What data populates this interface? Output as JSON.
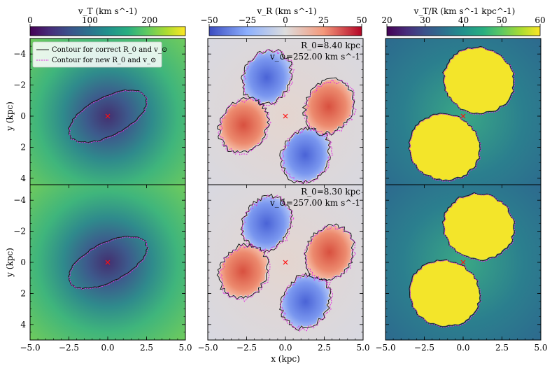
{
  "chart_data": [
    {
      "type": "heatmap",
      "panel": "top-left",
      "colorbar": {
        "label": "v_T (km s^-1)",
        "ticks": [
          "0",
          "100",
          "200"
        ],
        "range": [
          0,
          260
        ],
        "cmap": "viridis"
      },
      "xlim": [
        -5,
        5
      ],
      "ylim": [
        5,
        -5
      ],
      "ylabel": "y (kpc)",
      "ellipse": {
        "center": [
          0,
          0
        ],
        "a": 2.75,
        "b": 1.25,
        "angle_deg": 27
      },
      "marker": [
        0,
        0
      ],
      "legend": {
        "placement": "top-left",
        "entries": [
          "Contour for correct R_0 and v_⊙",
          "Contour for new R_0 and v_⊙"
        ]
      }
    },
    {
      "type": "heatmap",
      "panel": "top-middle",
      "colorbar": {
        "label": "v_R (km s^-1)",
        "ticks": [
          "−50",
          "−25",
          "0",
          "25",
          "50"
        ],
        "range": [
          -50,
          50
        ],
        "cmap": "coolwarm"
      },
      "xlim": [
        -5,
        5
      ],
      "ylim": [
        5,
        -5
      ],
      "annotation": [
        "R_0=8.40 kpc",
        "v_⊙=252.00 km s^-1"
      ],
      "marker": [
        0,
        0
      ]
    },
    {
      "type": "heatmap",
      "panel": "top-right",
      "colorbar": {
        "label": "v_T/R (km s^-1 kpc^-1)",
        "ticks": [
          "20",
          "30",
          "40",
          "50",
          "60"
        ],
        "range": [
          20,
          60
        ],
        "cmap": "viridis"
      },
      "xlim": [
        -5,
        5
      ],
      "ylim": [
        5,
        -5
      ],
      "marker": [
        0,
        0
      ]
    },
    {
      "type": "heatmap",
      "panel": "bottom-left",
      "xlim": [
        -5,
        5
      ],
      "ylim": [
        5,
        -5
      ],
      "xlabel": "",
      "ylabel": "y (kpc)",
      "ellipse": {
        "center": [
          0,
          0
        ],
        "a": 2.75,
        "b": 1.25,
        "angle_deg": 27
      },
      "marker": [
        0,
        0
      ]
    },
    {
      "type": "heatmap",
      "panel": "bottom-middle",
      "xlim": [
        -5,
        5
      ],
      "ylim": [
        5,
        -5
      ],
      "xlabel": "x (kpc)",
      "annotation": [
        "R_0=8.30 kpc",
        "v_⊙=257.00 km s^-1"
      ],
      "marker": [
        0,
        0
      ]
    },
    {
      "type": "heatmap",
      "panel": "bottom-right",
      "xlim": [
        -5,
        5
      ],
      "ylim": [
        5,
        -5
      ],
      "marker": [
        0,
        0
      ]
    }
  ],
  "x_ticks": [
    "−5.0",
    "−2.5",
    "0.0",
    "2.5",
    "5.0"
  ],
  "y_ticks": [
    "−4",
    "−2",
    "0",
    "2",
    "4"
  ]
}
